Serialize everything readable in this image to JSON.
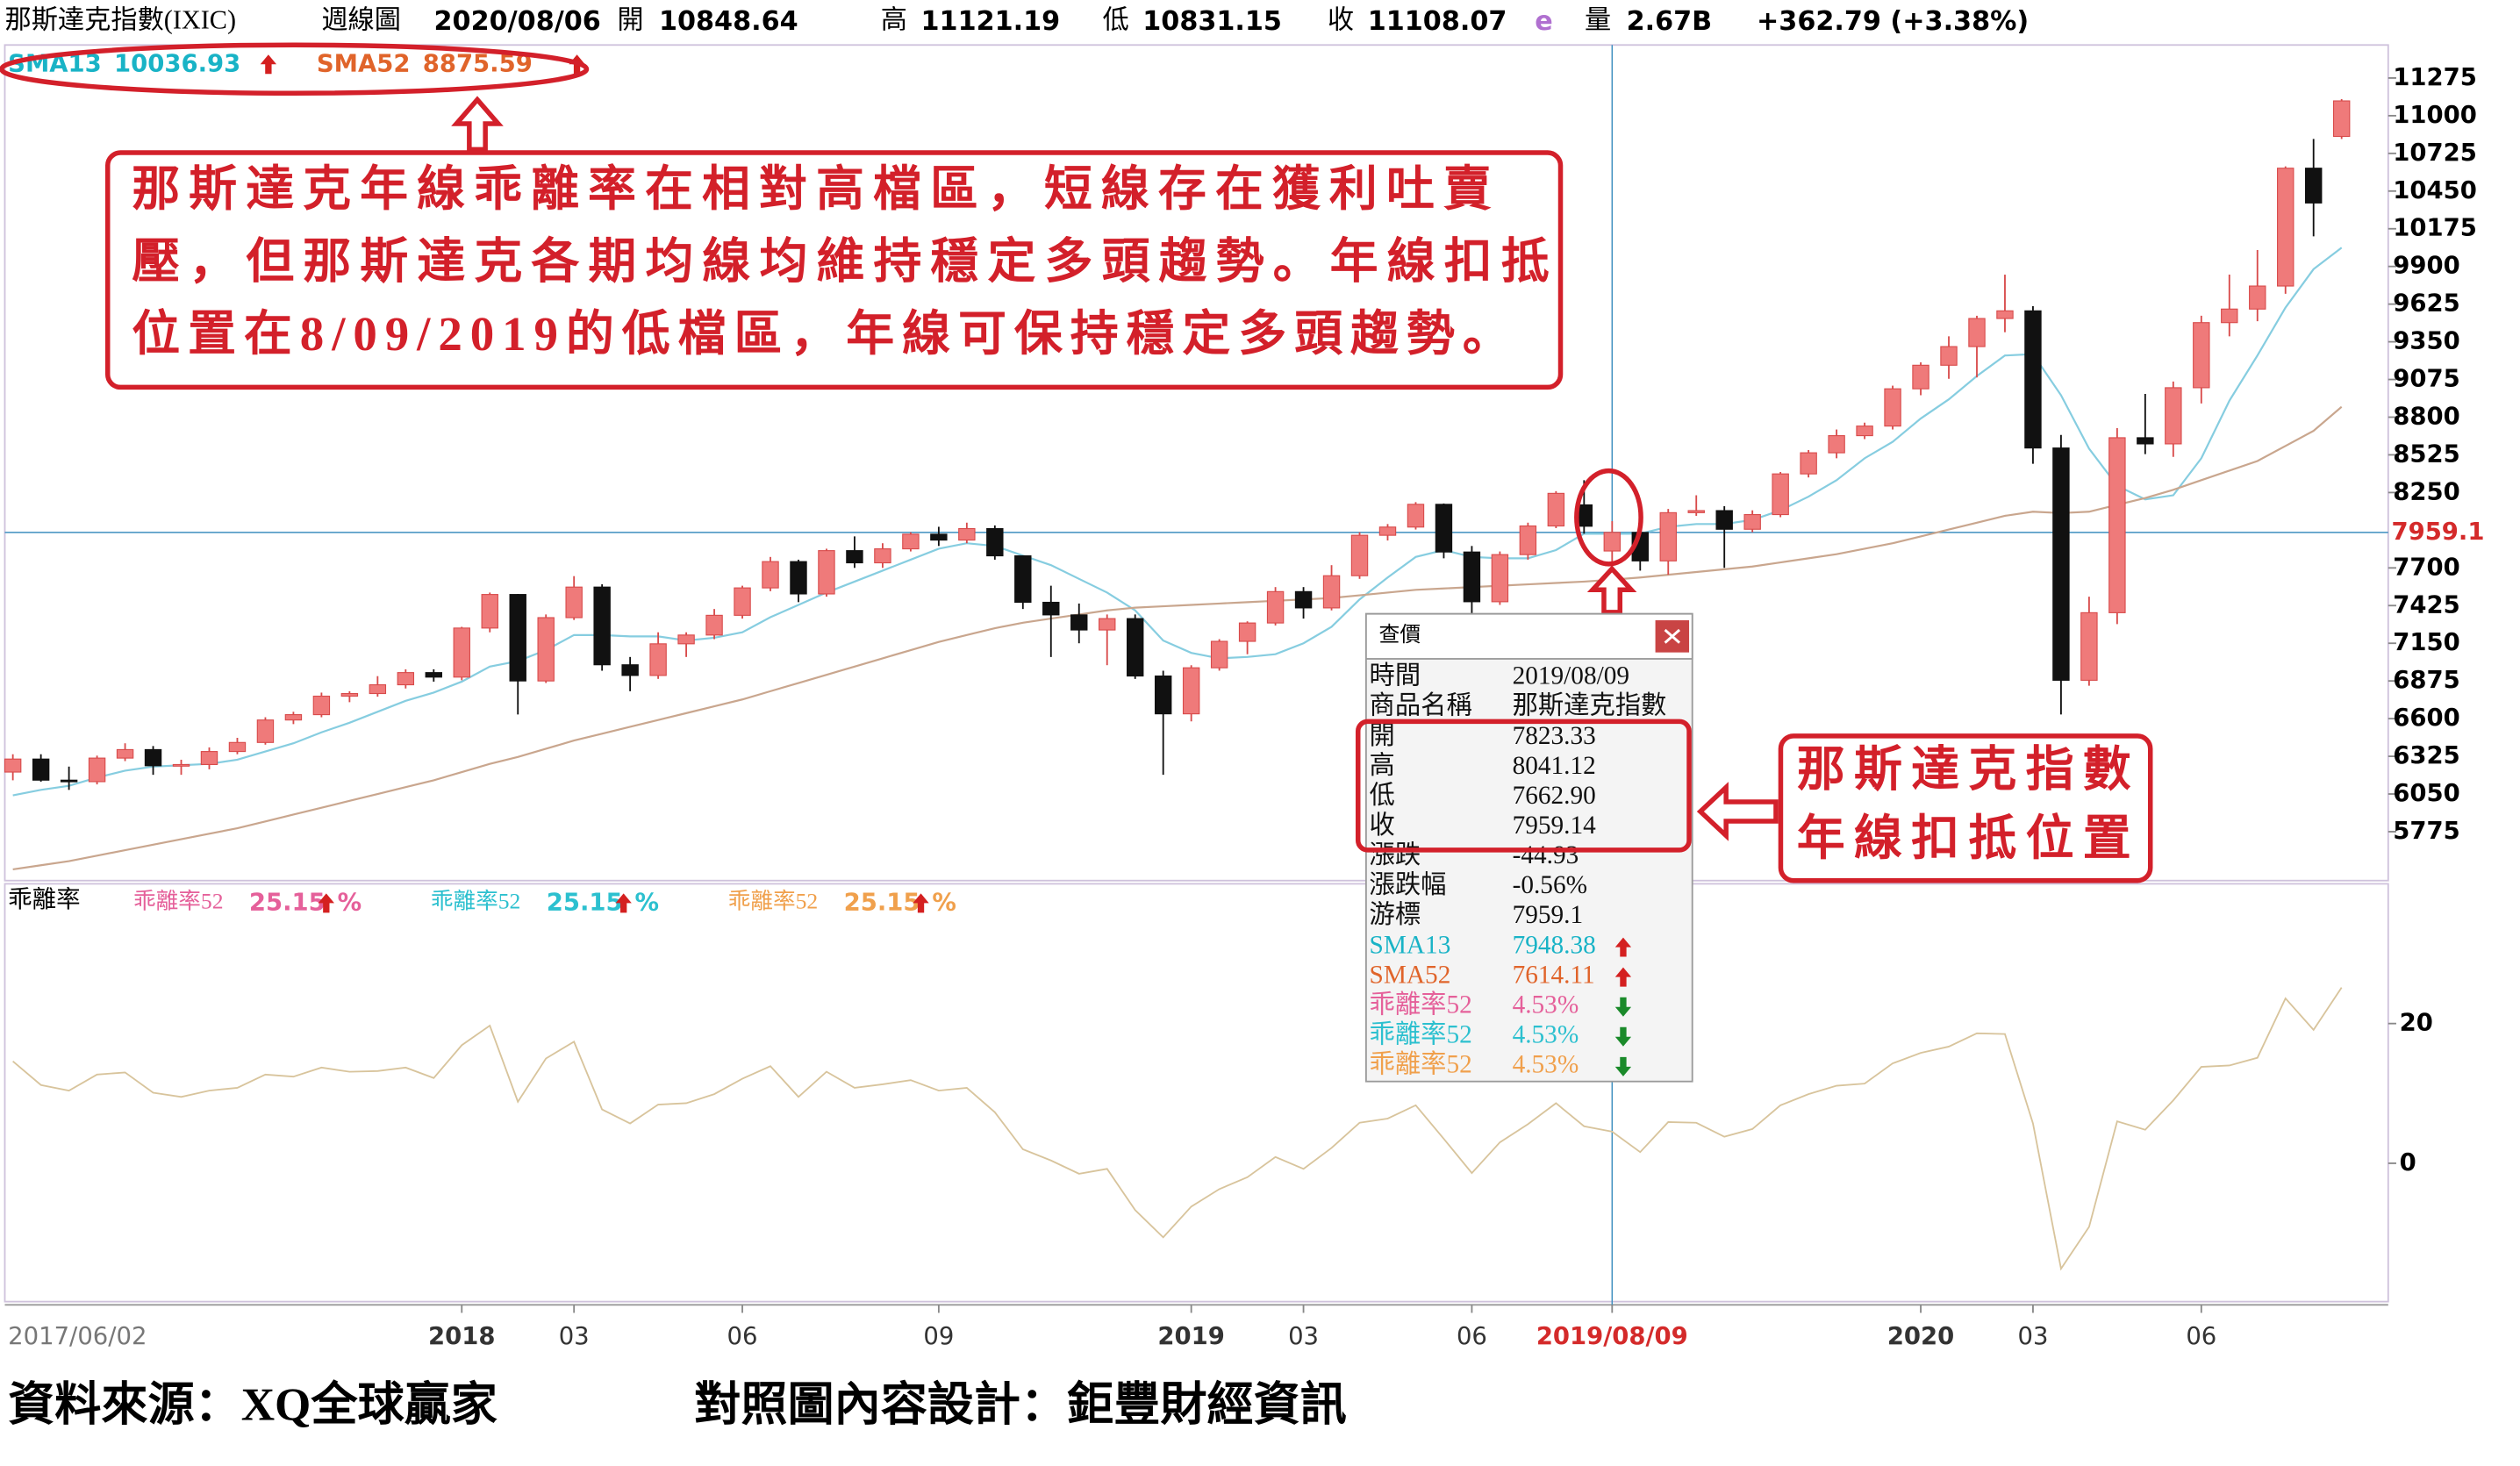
{
  "header": {
    "name": "那斯達克指數(IXIC)",
    "period": "週線圖",
    "date": "2020/08/06",
    "fields": [
      {
        "label": "開",
        "value": "10848.64"
      },
      {
        "label": "高",
        "value": "11121.19"
      },
      {
        "label": "低",
        "value": "10831.15"
      },
      {
        "label": "收",
        "value": "11108.07"
      }
    ],
    "flag": "e",
    "volume_label": "量",
    "volume": "2.67B",
    "change": "+362.79 (+3.38%)"
  },
  "chart_data": [
    {
      "type": "candlestick",
      "categories": [
        "2017/06/02",
        null,
        null,
        null,
        null,
        null,
        null,
        null,
        null,
        null,
        null,
        null,
        null,
        null,
        null,
        null,
        "2018",
        null,
        null,
        null,
        "03",
        null,
        null,
        null,
        null,
        null,
        "06",
        null,
        null,
        null,
        null,
        null,
        null,
        "09",
        null,
        null,
        null,
        null,
        null,
        null,
        null,
        null,
        "2019",
        null,
        null,
        null,
        "03",
        null,
        null,
        null,
        null,
        null,
        "06",
        null,
        null,
        null,
        null,
        "2019/08/09",
        null,
        null,
        null,
        null,
        null,
        null,
        null,
        null,
        null,
        null,
        "2020",
        null,
        null,
        null,
        "03",
        null,
        null,
        null,
        null,
        null,
        "06",
        null,
        null,
        null,
        null,
        null
      ],
      "open": [
        6210,
        6305,
        6151,
        6140,
        6312,
        6374,
        6256,
        6265,
        6360,
        6426,
        6590,
        6629,
        6764,
        6783,
        6847,
        6936,
        6903,
        7261,
        7506,
        6875,
        7337,
        7560,
        6993,
        6915,
        7146,
        7210,
        7354,
        7554,
        7746,
        7510,
        7826,
        7737,
        7839,
        7946,
        7903,
        7987,
        7788,
        7449,
        7357,
        7247,
        7330,
        6911,
        6635,
        6971,
        7164,
        7298,
        7527,
        7408,
        7643,
        7938,
        7998,
        8164,
        7816,
        7453,
        7797,
        8006,
        8160,
        7823.33,
        7959,
        7751,
        8103,
        8118,
        7982,
        8089,
        8386,
        8540,
        8665,
        8735,
        9007,
        9179,
        9315,
        9520,
        9576,
        8575,
        6880,
        7373,
        8650,
        8605,
        9015,
        9490,
        9589,
        9757,
        10617,
        10848.64
      ],
      "high": [
        6340,
        6340,
        6250,
        6330,
        6420,
        6400,
        6300,
        6390,
        6460,
        6610,
        6650,
        6790,
        6800,
        6910,
        6960,
        6960,
        7270,
        7520,
        7510,
        7360,
        7640,
        7580,
        7050,
        7230,
        7230,
        7400,
        7570,
        7780,
        7760,
        7840,
        7930,
        7880,
        7960,
        8000,
        8030,
        8010,
        7790,
        7570,
        7440,
        7360,
        7360,
        6950,
        6990,
        7180,
        7310,
        7560,
        7560,
        7720,
        7960,
        8020,
        8180,
        8170,
        7860,
        7820,
        8030,
        8260,
        8340,
        8041.12,
        8020,
        8130,
        8230,
        8150,
        8120,
        8400,
        8560,
        8710,
        8760,
        9030,
        9200,
        9390,
        9540,
        9840,
        9610,
        8670,
        7490,
        8720,
        8970,
        9060,
        9540,
        9840,
        10020,
        10630,
        10830,
        11121.19
      ],
      "low": [
        6150,
        6140,
        6080,
        6120,
        6290,
        6190,
        6190,
        6230,
        6340,
        6410,
        6560,
        6610,
        6720,
        6760,
        6820,
        6870,
        6880,
        7230,
        6630,
        6860,
        7320,
        6950,
        6800,
        6890,
        7050,
        7180,
        7330,
        7530,
        7450,
        7490,
        7700,
        7700,
        7820,
        7860,
        7880,
        7760,
        7400,
        7050,
        7150,
        6990,
        6890,
        6190,
        6580,
        6950,
        7070,
        7280,
        7330,
        7390,
        7620,
        7900,
        7980,
        7770,
        7290,
        7430,
        7760,
        7990,
        7950,
        7662.9,
        7680,
        7650,
        8080,
        7700,
        7960,
        8070,
        8360,
        8500,
        8640,
        8710,
        8960,
        9080,
        9090,
        9420,
        8460,
        6630,
        6840,
        7290,
        8530,
        8510,
        8900,
        9390,
        9500,
        9700,
        10120,
        10830
      ],
      "close": [
        6305,
        6151,
        6140,
        6312,
        6374,
        6256,
        6265,
        6360,
        6426,
        6590,
        6629,
        6764,
        6783,
        6847,
        6936,
        6903,
        7261,
        7506,
        6875,
        7337,
        7560,
        6993,
        6915,
        7146,
        7210,
        7354,
        7554,
        7746,
        7510,
        7826,
        7737,
        7839,
        7946,
        7903,
        7987,
        7788,
        7449,
        7357,
        7247,
        7330,
        6911,
        6635,
        6971,
        7164,
        7298,
        7527,
        7408,
        7643,
        7938,
        7998,
        8164,
        7816,
        7453,
        7797,
        8006,
        8244,
        8004,
        7959.14,
        7751,
        8103,
        8118,
        7982,
        8089,
        8386,
        8540,
        8665,
        8735,
        9007,
        9179,
        9315,
        9520,
        9576,
        8575,
        6880,
        7373,
        8650,
        8605,
        9015,
        9490,
        9589,
        9757,
        10617,
        10363,
        11108.07
      ],
      "up_color": "#ef7a7a",
      "up_border": "#d84a4a",
      "down_color": "#111111",
      "series": [
        {
          "name": "SMA13",
          "color": "#19b3c6",
          "line_color": "#86cde0",
          "trend": "up",
          "values": [
            6040,
            6080,
            6110,
            6170,
            6220,
            6250,
            6260,
            6270,
            6300,
            6360,
            6420,
            6500,
            6570,
            6650,
            6730,
            6790,
            6870,
            6980,
            7020,
            7100,
            7210,
            7210,
            7200,
            7200,
            7170,
            7190,
            7230,
            7340,
            7430,
            7520,
            7600,
            7680,
            7760,
            7840,
            7880,
            7860,
            7790,
            7720,
            7620,
            7520,
            7390,
            7170,
            7080,
            7040,
            7050,
            7070,
            7150,
            7270,
            7470,
            7630,
            7780,
            7830,
            7780,
            7770,
            7770,
            7830,
            7950,
            7948.38,
            7950,
            8000,
            8020,
            8020,
            8050,
            8120,
            8220,
            8340,
            8500,
            8620,
            8790,
            8930,
            9100,
            9250,
            9260,
            8960,
            8570,
            8300,
            8200,
            8230,
            8500,
            8920,
            9250,
            9600,
            9880,
            10036.93
          ]
        },
        {
          "name": "SMA52",
          "color": "#e0642a",
          "line_color": "#c9a68e",
          "trend": "up",
          "values": [
            5500,
            5530,
            5560,
            5600,
            5640,
            5680,
            5720,
            5760,
            5800,
            5850,
            5900,
            5950,
            6000,
            6050,
            6100,
            6150,
            6210,
            6270,
            6320,
            6380,
            6440,
            6490,
            6540,
            6590,
            6640,
            6690,
            6740,
            6800,
            6860,
            6920,
            6980,
            7040,
            7100,
            7160,
            7210,
            7260,
            7300,
            7330,
            7360,
            7390,
            7410,
            7420,
            7430,
            7440,
            7450,
            7460,
            7470,
            7480,
            7500,
            7520,
            7540,
            7550,
            7560,
            7570,
            7580,
            7590,
            7600,
            7614.11,
            7630,
            7650,
            7670,
            7690,
            7710,
            7740,
            7770,
            7800,
            7840,
            7880,
            7930,
            7980,
            8030,
            8080,
            8110,
            8100,
            8110,
            8160,
            8210,
            8270,
            8340,
            8410,
            8480,
            8590,
            8700,
            8875.59
          ]
        }
      ],
      "ylim": [
        5418,
        11516
      ],
      "yticks": [
        5775,
        6050,
        6325,
        6600,
        6875,
        7150,
        7425,
        7700,
        8250,
        8525,
        8800,
        9075,
        9350,
        9625,
        9900,
        10175,
        10450,
        10725,
        11000,
        11275
      ],
      "cursor": {
        "y": {
          "value": 7959.1,
          "label": "7959.1"
        },
        "x": "2019/08/09",
        "color": "#3d8fbf",
        "label_color": "#d42a2a"
      }
    },
    {
      "type": "line",
      "title": "乖離率",
      "unit": "%",
      "series": [
        {
          "name": "乖離率52",
          "color": "#d8c49c",
          "values": [
            14.6,
            11.2,
            10.4,
            12.7,
            13.0,
            10.1,
            9.5,
            10.4,
            10.8,
            12.7,
            12.4,
            13.7,
            13.1,
            13.2,
            13.7,
            12.2,
            16.9,
            19.7,
            8.8,
            15.0,
            17.4,
            7.7,
            5.7,
            8.4,
            8.6,
            9.9,
            12.1,
            13.9,
            9.5,
            13.1,
            10.8,
            11.3,
            11.9,
            10.4,
            10.8,
            7.3,
            2.0,
            0.4,
            -1.5,
            -0.8,
            -6.7,
            -10.6,
            -6.2,
            -3.7,
            -2.0,
            0.9,
            -0.8,
            2.2,
            5.8,
            6.4,
            8.3,
            3.5,
            -1.4,
            3.0,
            5.6,
            8.6,
            5.3,
            4.53,
            1.6,
            5.9,
            5.8,
            3.8,
            4.9,
            8.3,
            9.9,
            11.1,
            11.4,
            14.3,
            15.8,
            16.7,
            18.6,
            18.5,
            5.7,
            -15.1,
            -9.1,
            6.0,
            4.8,
            9.0,
            13.8,
            14.0,
            15.1,
            23.6,
            19.1,
            25.15
          ]
        }
      ],
      "legend": [
        {
          "name": "乖離率52",
          "color": "#e5609a",
          "trend": "up"
        },
        {
          "name": "乖離率52",
          "color": "#2cc0cf",
          "trend": "up"
        },
        {
          "name": "乖離率52",
          "color": "#f0a04c",
          "trend": "up"
        }
      ],
      "ylim": [
        -19.8,
        40
      ],
      "yticks": [
        0,
        20
      ]
    }
  ],
  "tooltip": {
    "title": "查價",
    "rows": [
      {
        "label": "時間",
        "value": "2019/08/09"
      },
      {
        "label": "商品名稱",
        "value": "那斯達克指數"
      },
      {
        "label": "開",
        "value": "7823.33"
      },
      {
        "label": "高",
        "value": "8041.12"
      },
      {
        "label": "低",
        "value": "7662.90"
      },
      {
        "label": "收",
        "value": "7959.14"
      },
      {
        "label": "漲跌",
        "value": "-44.93"
      },
      {
        "label": "漲跌幅",
        "value": "-0.56%"
      },
      {
        "label": "游標",
        "value": "7959.1"
      },
      {
        "label": "SMA13",
        "value": "7948.38",
        "color": "#19b3c6",
        "trend": "up"
      },
      {
        "label": "SMA52",
        "value": "7614.11",
        "color": "#e0642a",
        "trend": "up"
      },
      {
        "label": "乖離率52",
        "value": "4.53%",
        "color": "#e5609a",
        "trend": "down"
      },
      {
        "label": "乖離率52",
        "value": "4.53%",
        "color": "#2cc0cf",
        "trend": "down"
      },
      {
        "label": "乖離率52",
        "value": "4.53%",
        "color": "#f0a04c",
        "trend": "down"
      }
    ]
  },
  "annotations": {
    "note_1": [
      "那斯達克年線乖離率在相對高檔區，短線存在獲利吐賣",
      "壓，但那斯達克各期均線均維持穩定多頭趨勢。年線扣抵",
      "位置在8/09/2019的低檔區，年線可保持穩定多頭趨勢。"
    ],
    "note_2": [
      "那斯達克指數",
      "年線扣抵位置"
    ]
  },
  "footer": {
    "source": "資料來源：XQ全球贏家",
    "design": "對照圖內容設計：鉅豐財經資訊"
  }
}
